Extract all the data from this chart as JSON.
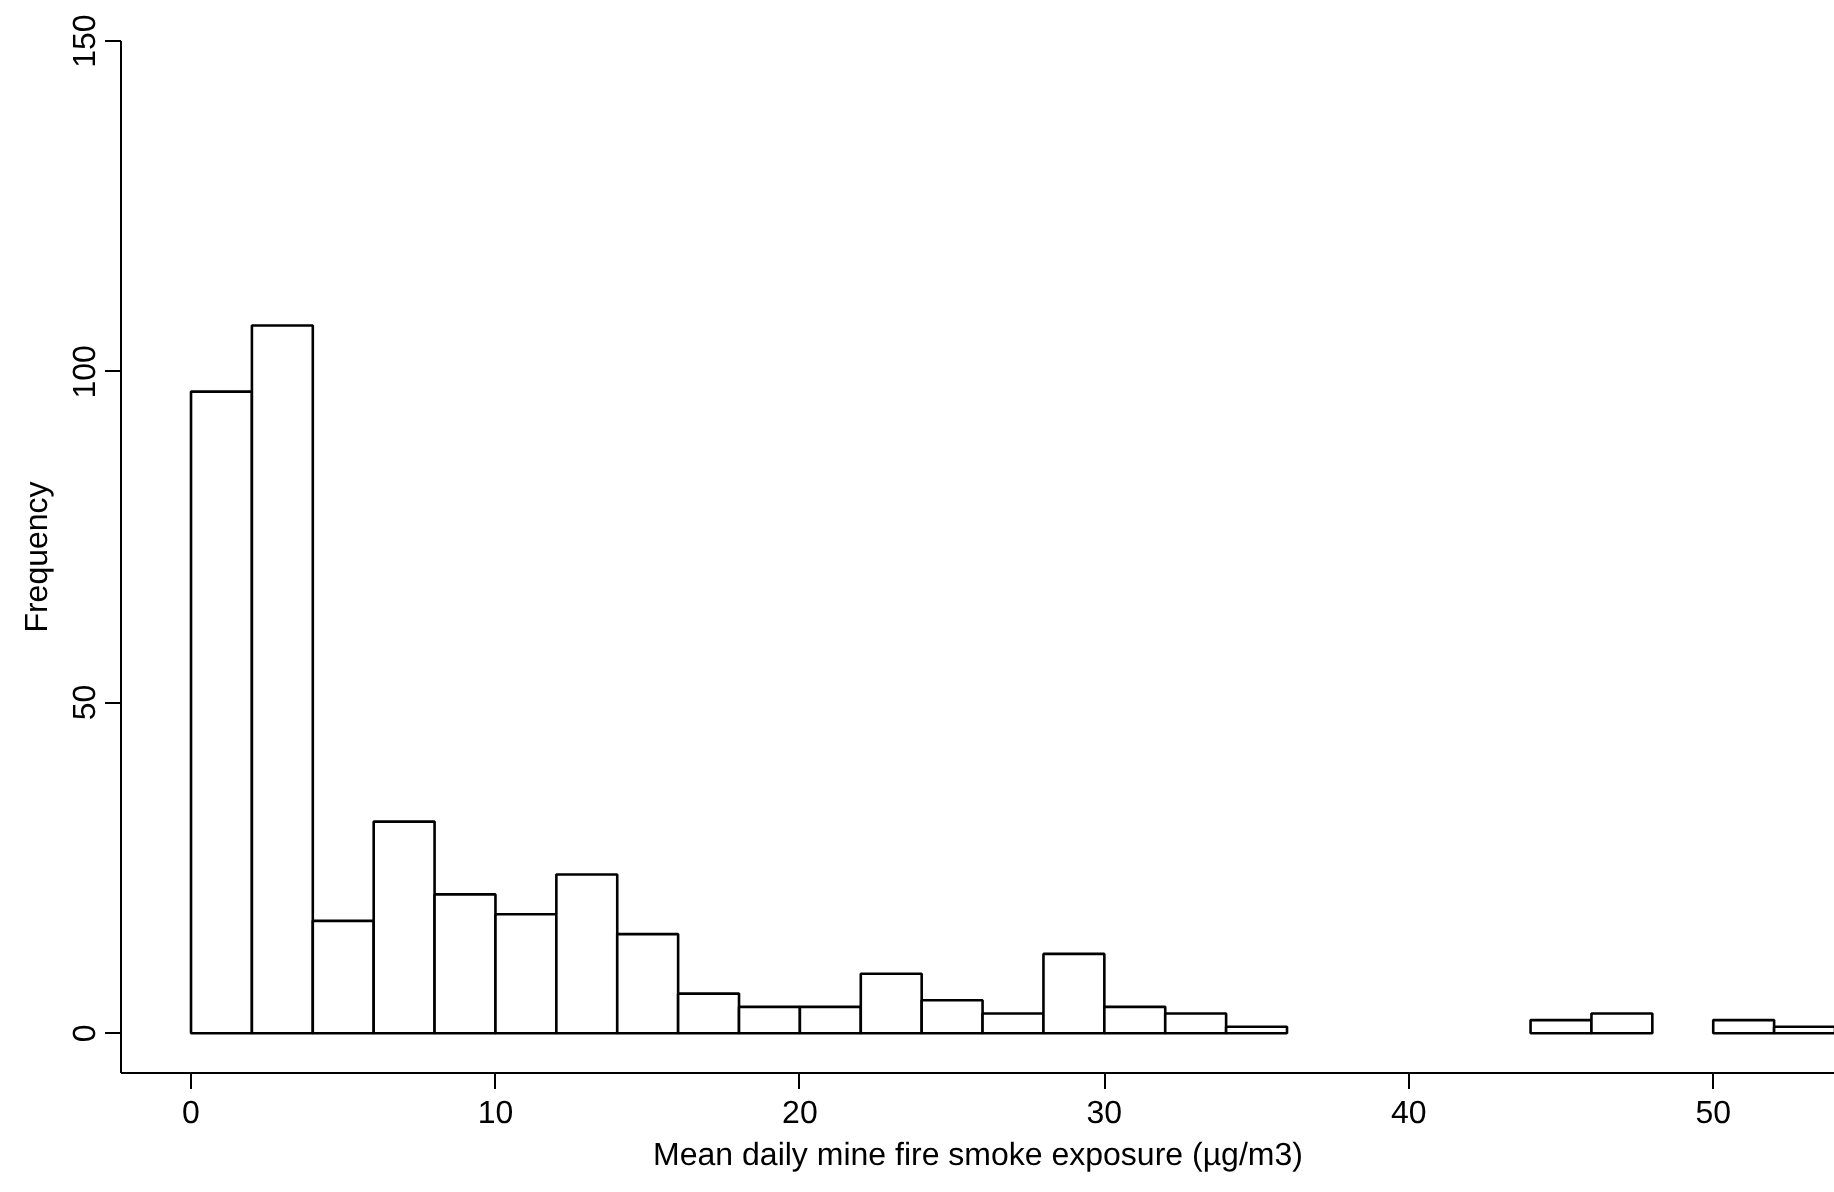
{
  "chart_data": {
    "type": "histogram",
    "xlabel": "Mean daily mine fire smoke exposure (µg/m3)",
    "ylabel": "Frequency",
    "bins": [
      0,
      2,
      4,
      6,
      8,
      10,
      12,
      14,
      16,
      18,
      20,
      22,
      24,
      26,
      28,
      30,
      32,
      34,
      36,
      38,
      40,
      42,
      44,
      46,
      48,
      50,
      52,
      54
    ],
    "values": [
      97,
      107,
      17,
      32,
      21,
      18,
      24,
      15,
      6,
      4,
      4,
      9,
      5,
      3,
      12,
      4,
      3,
      1,
      0,
      0,
      0,
      0,
      2,
      3,
      0,
      2,
      1
    ],
    "color": "#ffffff",
    "xlim": [
      -2.3,
      54
    ],
    "xticks": [
      0,
      10,
      20,
      30,
      40,
      50
    ],
    "ylim": [
      -6,
      150
    ],
    "yticks": [
      0,
      50,
      100,
      150
    ],
    "grid": false
  }
}
